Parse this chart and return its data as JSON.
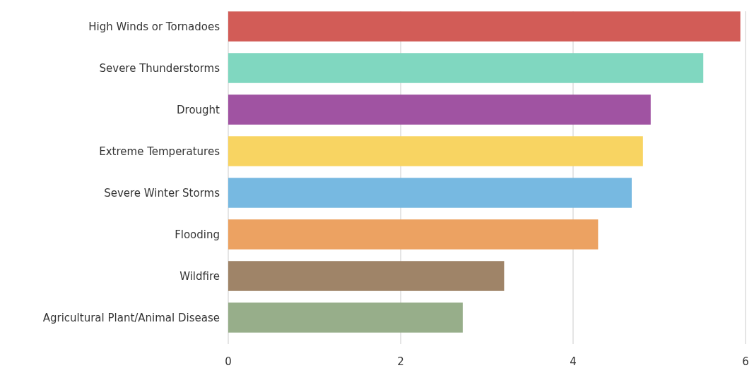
{
  "chart_data": {
    "type": "bar",
    "orientation": "horizontal",
    "categories": [
      "High Winds or Tornadoes",
      "Severe Thunderstorms",
      "Drought",
      "Extreme Temperatures",
      "Severe Winter Storms",
      "Flooding",
      "Wildfire",
      "Agricultural Plant/Animal Disease"
    ],
    "values": [
      5.94,
      5.51,
      4.9,
      4.81,
      4.68,
      4.29,
      3.2,
      2.72
    ],
    "colors": [
      "#d25c57",
      "#80d7c0",
      "#a053a2",
      "#f8d462",
      "#77b9e1",
      "#eca262",
      "#9f8468",
      "#97ae8a"
    ],
    "xlim": [
      0,
      6
    ],
    "xticks": [
      0,
      2,
      4,
      6
    ],
    "grid": "x"
  }
}
